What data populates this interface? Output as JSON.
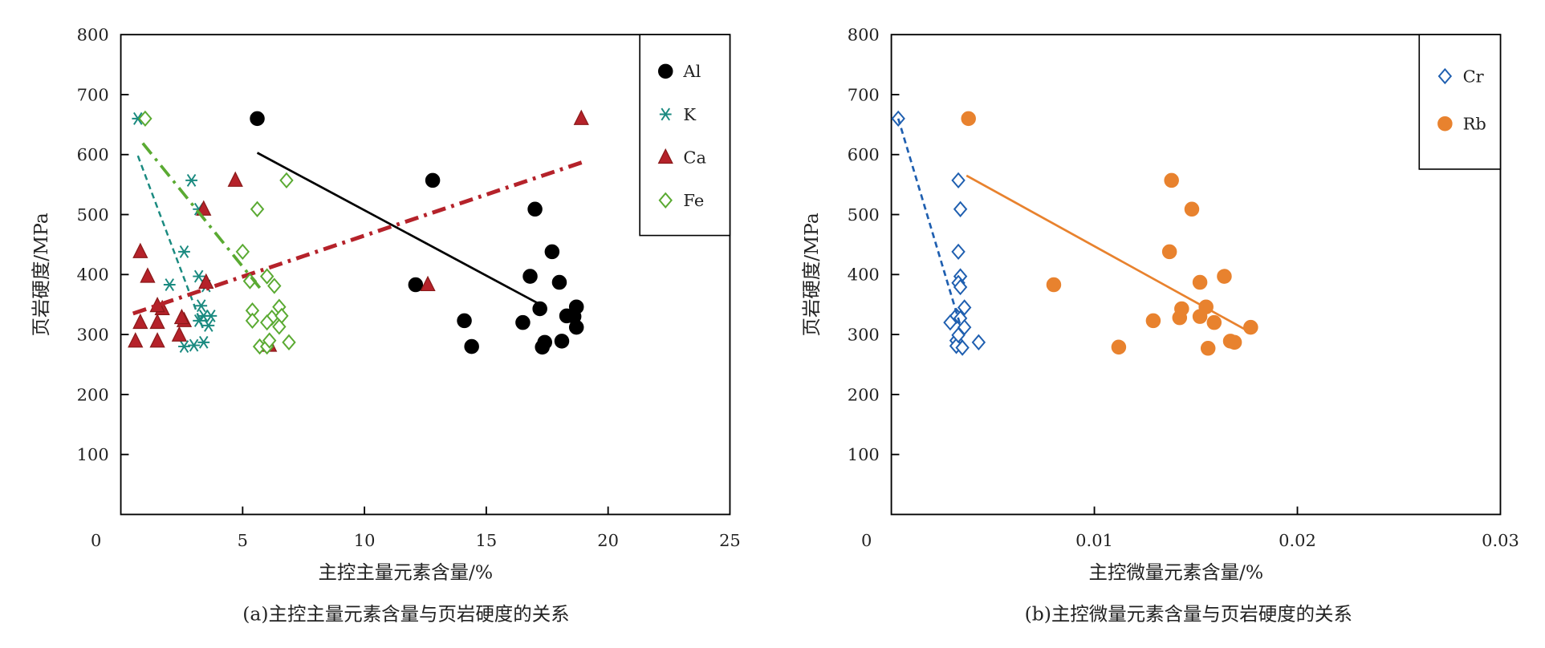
{
  "chart_data": [
    {
      "type": "scatter",
      "title": "",
      "caption": "(a)主控主量元素含量与页岩硬度的关系",
      "xlabel": "主控主量元素含量/%",
      "ylabel": "页岩硬度/MPa",
      "xlim": [
        0,
        25
      ],
      "ylim": [
        0,
        800
      ],
      "xticks": [
        "0",
        "5",
        "10",
        "15",
        "20",
        "25"
      ],
      "xtick_values": [
        0,
        5,
        10,
        15,
        20,
        25
      ],
      "yticks": [
        "100",
        "200",
        "300",
        "400",
        "500",
        "600",
        "700",
        "800"
      ],
      "ytick_values": [
        100,
        200,
        300,
        400,
        500,
        600,
        700,
        800
      ],
      "legend_position": "top-right",
      "series": [
        {
          "name": "Al",
          "marker": "circle",
          "color": "#000000",
          "x": [
            5.6,
            12.8,
            12.1,
            14.1,
            14.4,
            16.5,
            16.8,
            17.0,
            17.7,
            18.0,
            17.2,
            17.4,
            17.3,
            18.1,
            18.3,
            18.7,
            18.7,
            18.6
          ],
          "y": [
            660,
            557,
            383,
            323,
            280,
            320,
            397,
            509,
            438,
            387,
            343,
            287,
            279,
            289,
            331,
            346,
            312,
            330
          ],
          "fit": {
            "x": [
              5.6,
              17.4
            ],
            "y": [
              603,
              346
            ],
            "style": "solid"
          }
        },
        {
          "name": "K",
          "marker": "asterisk",
          "color": "#1a8a80",
          "x": [
            0.7,
            2.9,
            2.6,
            2.0,
            3.2,
            3.3,
            3.4,
            3.2,
            3.6,
            3.7,
            2.6,
            3.0,
            3.4,
            3.2,
            3.5
          ],
          "y": [
            660,
            557,
            438,
            383,
            397,
            348,
            331,
            323,
            315,
            331,
            280,
            282,
            287,
            509,
            381
          ],
          "fit": {
            "x": [
              0.7,
              3.4
            ],
            "y": [
              598,
              307
            ],
            "style": "dashed"
          }
        },
        {
          "name": "Ca",
          "marker": "triangle",
          "color": "#b5222a",
          "x": [
            18.9,
            4.7,
            3.4,
            0.8,
            1.1,
            3.5,
            12.6,
            0.8,
            1.7,
            1.5,
            2.6,
            2.4,
            1.5,
            0.6,
            6.1,
            1.5,
            2.5
          ],
          "y": [
            660,
            557,
            509,
            438,
            397,
            387,
            383,
            320,
            343,
            320,
            323,
            299,
            289,
            289,
            282,
            348,
            328
          ],
          "fit": {
            "x": [
              0.5,
              19.0
            ],
            "y": [
              335,
              588
            ],
            "style": "dashdot"
          }
        },
        {
          "name": "Fe",
          "marker": "diamond",
          "color": "#5aaa32",
          "x": [
            1.0,
            6.8,
            5.6,
            5.0,
            5.3,
            6.0,
            6.3,
            5.4,
            5.4,
            6.5,
            6.2,
            6.0,
            6.6,
            6.5,
            5.7,
            6.0,
            6.9,
            6.1
          ],
          "y": [
            660,
            557,
            509,
            438,
            389,
            397,
            381,
            340,
            323,
            346,
            328,
            320,
            331,
            313,
            280,
            280,
            287,
            290
          ],
          "fit": {
            "x": [
              0.9,
              5.8
            ],
            "y": [
              619,
              373
            ],
            "style": "dashdot"
          }
        }
      ]
    },
    {
      "type": "scatter",
      "title": "",
      "caption": "(b)主控微量元素含量与页岩硬度的关系",
      "xlabel": "主控微量元素含量/%",
      "ylabel": "页岩硬度/MPa",
      "xlim": [
        0,
        0.03
      ],
      "ylim": [
        0,
        800
      ],
      "xticks": [
        "0",
        "0.01",
        "0.02",
        "0.03"
      ],
      "xtick_values": [
        0,
        0.01,
        0.02,
        0.03
      ],
      "yticks": [
        "100",
        "200",
        "300",
        "400",
        "500",
        "600",
        "700",
        "800"
      ],
      "ytick_values": [
        100,
        200,
        300,
        400,
        500,
        600,
        700,
        800
      ],
      "legend_position": "top-right",
      "series": [
        {
          "name": "Cr",
          "marker": "diamond",
          "color": "#1f5fb0",
          "x": [
            0.00034,
            0.0033,
            0.0034,
            0.0033,
            0.0034,
            0.0033,
            0.0034,
            0.0036,
            0.0032,
            0.0029,
            0.0034,
            0.0036,
            0.0032,
            0.0032,
            0.0035,
            0.0043,
            0.0033
          ],
          "y": [
            660,
            557,
            509,
            438,
            397,
            386,
            379,
            345,
            331,
            320,
            327,
            312,
            290,
            281,
            278,
            287,
            299
          ],
          "fit": {
            "x": [
              0.00034,
              0.0034
            ],
            "y": [
              660,
              315
            ],
            "style": "dashed"
          }
        },
        {
          "name": "Rb",
          "marker": "circle",
          "color": "#e8822e",
          "x": [
            0.0038,
            0.0138,
            0.0148,
            0.0137,
            0.008,
            0.0164,
            0.0152,
            0.0155,
            0.0143,
            0.0142,
            0.0152,
            0.0129,
            0.0159,
            0.0177,
            0.0112,
            0.0156,
            0.0167,
            0.0169
          ],
          "y": [
            660,
            557,
            509,
            438,
            383,
            397,
            387,
            346,
            343,
            328,
            330,
            323,
            320,
            312,
            279,
            277,
            289,
            287
          ],
          "fit": {
            "x": [
              0.0037,
              0.0175
            ],
            "y": [
              565,
              307
            ],
            "style": "solid"
          }
        }
      ]
    }
  ]
}
